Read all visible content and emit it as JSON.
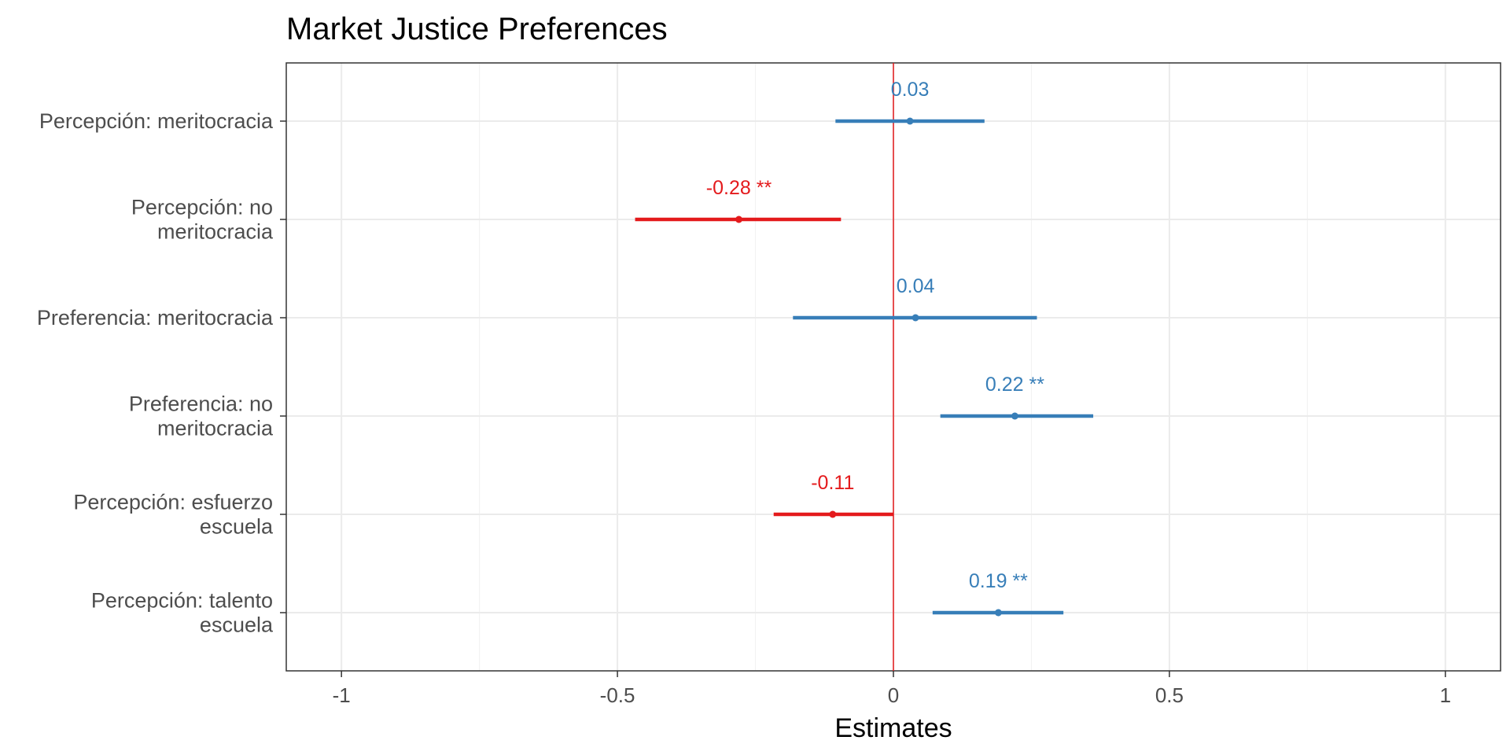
{
  "chart_data": {
    "type": "forest",
    "title": "Market Justice Preferences",
    "xlabel": "Estimates",
    "xlim": [
      -1.1,
      1.1
    ],
    "xticks": [
      {
        "value": -1,
        "label": "-1"
      },
      {
        "value": -0.5,
        "label": "-0.5"
      },
      {
        "value": 0,
        "label": "0"
      },
      {
        "value": 0.5,
        "label": "0.5"
      },
      {
        "value": 1,
        "label": "1"
      }
    ],
    "reference_line": 0,
    "grid": true,
    "colors": {
      "positive": "#377eb8",
      "negative": "#e41a1c",
      "reference": "#e41a1c"
    },
    "terms": [
      {
        "label_lines": [
          "Percepción: meritocracia"
        ],
        "estimate": 0.03,
        "ci_low": -0.105,
        "ci_high": 0.165,
        "label": "0.03"
      },
      {
        "label_lines": [
          "Percepción: no",
          "meritocracia"
        ],
        "estimate": -0.28,
        "ci_low": -0.468,
        "ci_high": -0.095,
        "label": "-0.28 **"
      },
      {
        "label_lines": [
          "Preferencia: meritocracia"
        ],
        "estimate": 0.04,
        "ci_low": -0.182,
        "ci_high": 0.26,
        "label": "0.04"
      },
      {
        "label_lines": [
          "Preferencia: no",
          "meritocracia"
        ],
        "estimate": 0.22,
        "ci_low": 0.085,
        "ci_high": 0.362,
        "label": "0.22 **"
      },
      {
        "label_lines": [
          "Percepción: esfuerzo",
          "escuela"
        ],
        "estimate": -0.11,
        "ci_low": -0.217,
        "ci_high": 0.0,
        "label": "-0.11"
      },
      {
        "label_lines": [
          "Percepción: talento",
          "escuela"
        ],
        "estimate": 0.19,
        "ci_low": 0.071,
        "ci_high": 0.308,
        "label": "0.19 **"
      }
    ]
  }
}
